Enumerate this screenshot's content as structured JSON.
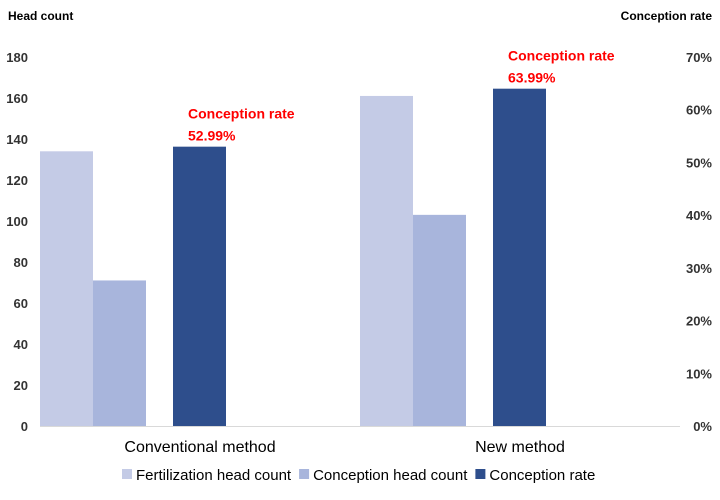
{
  "chart_data": {
    "type": "bar",
    "categories": [
      "Conventional method",
      "New method"
    ],
    "series": [
      {
        "name": "Fertilization head count",
        "axis": "left",
        "values": [
          134,
          161
        ],
        "color": "#c4cbe6"
      },
      {
        "name": "Conception head count",
        "axis": "left",
        "values": [
          71,
          103
        ],
        "color": "#a8b5dc"
      },
      {
        "name": "Conception rate",
        "axis": "right",
        "values": [
          52.99,
          63.99
        ],
        "color": "#2e4e8c"
      }
    ],
    "ylabel_left": "Head count",
    "ylabel_right": "Conception rate",
    "ylim_left": [
      0,
      180
    ],
    "ylim_right": [
      0,
      70
    ],
    "yticks_left": [
      "0",
      "20",
      "40",
      "60",
      "80",
      "100",
      "120",
      "140",
      "160",
      "180"
    ],
    "yticks_right": [
      "0%",
      "10%",
      "20%",
      "30%",
      "40%",
      "50%",
      "60%",
      "70%"
    ],
    "annotations": [
      {
        "category": "Conventional method",
        "title": "Conception rate",
        "value": "52.99%"
      },
      {
        "category": "New method",
        "title": "Conception rate",
        "value": "63.99%"
      }
    ],
    "annotation_color": "#ff0000",
    "legend_position": "bottom",
    "grid": false
  }
}
